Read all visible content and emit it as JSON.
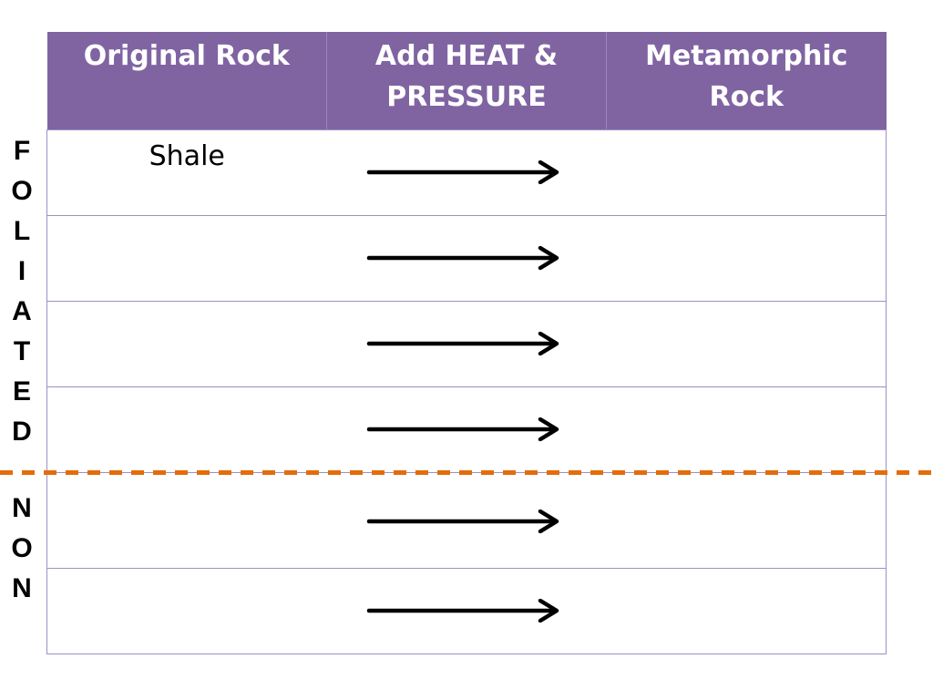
{
  "table": {
    "headers": [
      "Original Rock",
      "Add HEAT & PRESSURE",
      "Metamorphic Rock"
    ],
    "rows": [
      {
        "original": "Shale",
        "metamorphic": ""
      },
      {
        "original": "",
        "metamorphic": ""
      },
      {
        "original": "",
        "metamorphic": ""
      },
      {
        "original": "",
        "metamorphic": ""
      },
      {
        "original": "",
        "metamorphic": ""
      },
      {
        "original": "",
        "metamorphic": ""
      }
    ]
  },
  "side_labels": {
    "foliated": [
      "F",
      "O",
      "L",
      "I",
      "A",
      "T",
      "E",
      "D"
    ],
    "non": [
      "N",
      "O",
      "N"
    ]
  },
  "colors": {
    "header_bg": "#8064a2",
    "divider": "#e46c0a"
  }
}
